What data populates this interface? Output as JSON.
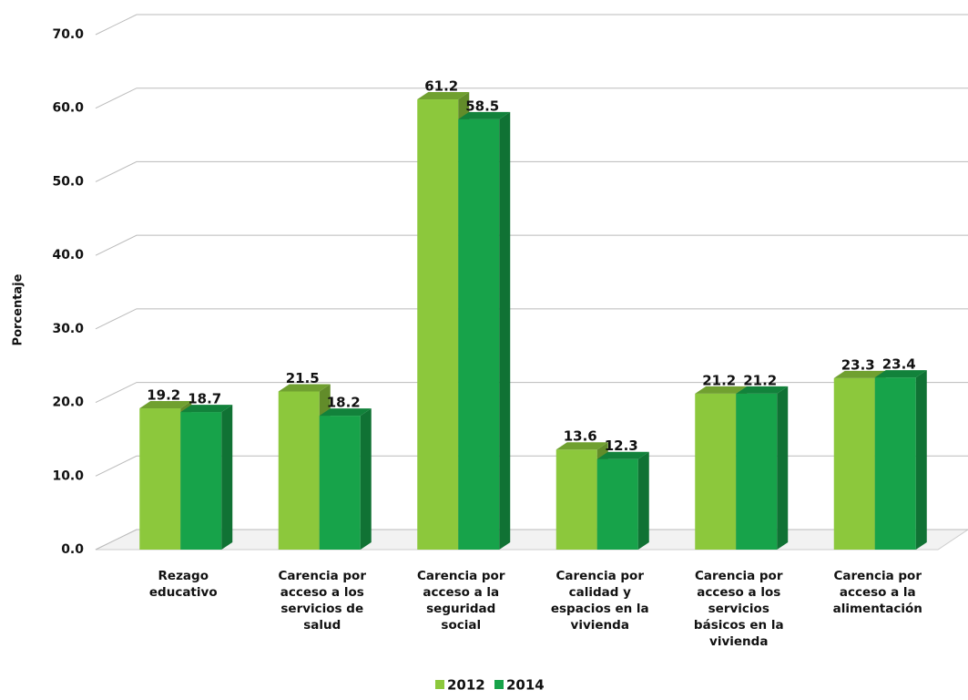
{
  "chart_data": {
    "type": "bar3d",
    "y_axis_label": "Porcentaje",
    "categories": [
      "Rezago educativo",
      "Carencia por acceso a los servicios de salud",
      "Carencia por acceso a la seguridad social",
      "Carencia por calidad y espacios en la vivienda",
      "Carencia por acceso a los servicios básicos en la vivienda",
      "Carencia por acceso a la alimentación"
    ],
    "series": [
      {
        "name": "2012",
        "color": "#8cc83c",
        "values": [
          19.2,
          21.5,
          61.2,
          13.6,
          21.2,
          23.3
        ]
      },
      {
        "name": "2014",
        "color": "#17a34a",
        "values": [
          18.7,
          18.2,
          58.5,
          12.3,
          21.2,
          23.4
        ]
      }
    ],
    "ylim": [
      0,
      70
    ],
    "yticks": [
      {
        "value": 0,
        "label": "0.0"
      },
      {
        "value": 10,
        "label": "10.0"
      },
      {
        "value": 20,
        "label": "20.0"
      },
      {
        "value": 30,
        "label": "30.0"
      },
      {
        "value": 40,
        "label": "40.0"
      },
      {
        "value": 50,
        "label": "50.0"
      },
      {
        "value": 60,
        "label": "60.0"
      },
      {
        "value": 70,
        "label": "70.0"
      }
    ],
    "grid": true,
    "legend": "bottom"
  }
}
